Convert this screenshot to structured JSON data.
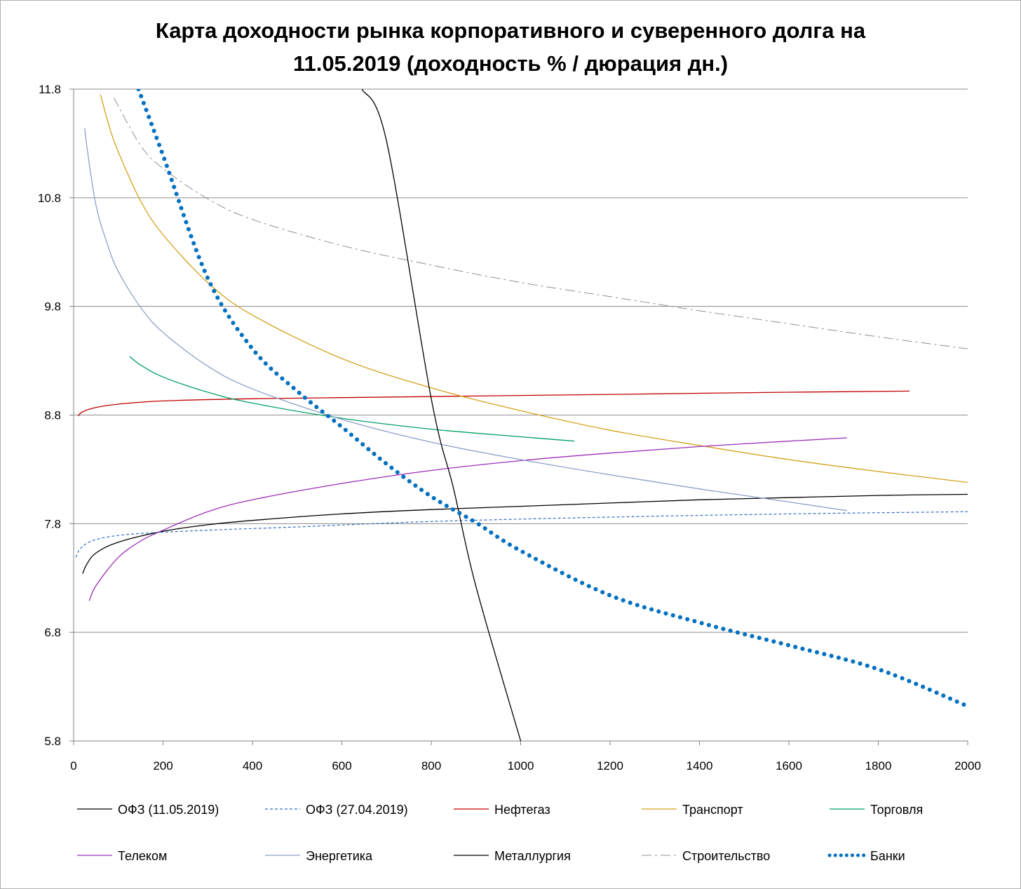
{
  "chart_data": {
    "type": "line",
    "title_line1": "Карта доходности рынка корпоративного и суверенного долга на",
    "title_line2": "11.05.2019 (доходность % / дюрация дн.)",
    "xlim": [
      0,
      2000
    ],
    "ylim": [
      5.8,
      11.8
    ],
    "x_ticks": [
      "0",
      "200",
      "400",
      "600",
      "800",
      "1000",
      "1200",
      "1400",
      "1600",
      "1800",
      "2000"
    ],
    "y_ticks": [
      "5.8",
      "6.8",
      "7.8",
      "8.8",
      "9.8",
      "10.8",
      "11.8"
    ],
    "grid": "horizontal",
    "legend_position": "bottom",
    "series": [
      {
        "name": "ОФЗ (11.05.2019)",
        "color": "#000000",
        "style": "solid",
        "x": [
          20,
          30,
          50,
          100,
          200,
          300,
          400,
          600,
          800,
          1000,
          1200,
          1400,
          1600,
          1800,
          2000
        ],
        "y": [
          7.34,
          7.43,
          7.53,
          7.63,
          7.73,
          7.79,
          7.83,
          7.89,
          7.93,
          7.96,
          7.99,
          8.02,
          8.04,
          8.06,
          8.07
        ]
      },
      {
        "name": "ОФЗ (27.04.2019)",
        "color": "#2e6ec2",
        "style": "dashed",
        "x": [
          5,
          10,
          20,
          40,
          80,
          150,
          300,
          500,
          800,
          1200,
          1600,
          2000
        ],
        "y": [
          7.49,
          7.54,
          7.59,
          7.64,
          7.68,
          7.71,
          7.74,
          7.77,
          7.82,
          7.86,
          7.89,
          7.91
        ]
      },
      {
        "name": "Нефтегаз",
        "color": "#c00000",
        "style": "solid",
        "x": [
          10,
          20,
          50,
          100,
          200,
          400,
          600,
          800,
          1000,
          1200,
          1400,
          1600,
          1870
        ],
        "y": [
          8.79,
          8.83,
          8.87,
          8.9,
          8.93,
          8.95,
          8.96,
          8.97,
          8.98,
          8.99,
          9.0,
          9.01,
          9.02
        ]
      },
      {
        "name": "Транспорт",
        "color": "#d4a017",
        "style": "solid",
        "x": [
          60,
          80,
          100,
          150,
          200,
          300,
          400,
          600,
          800,
          1000,
          1200,
          1400,
          1600,
          1800,
          2000
        ],
        "y": [
          11.75,
          11.45,
          11.22,
          10.77,
          10.46,
          10.02,
          9.72,
          9.32,
          9.05,
          8.84,
          8.66,
          8.52,
          8.39,
          8.28,
          8.18
        ]
      },
      {
        "name": "Торговля",
        "color": "#00a060",
        "style": "solid",
        "x": [
          125,
          150,
          200,
          300,
          400,
          600,
          800,
          1000,
          1120
        ],
        "y": [
          9.34,
          9.26,
          9.15,
          9.01,
          8.91,
          8.77,
          8.67,
          8.6,
          8.56
        ]
      },
      {
        "name": "Телеком",
        "color": "#9b30b8",
        "style": "solid",
        "x": [
          35,
          50,
          100,
          150,
          200,
          300,
          400,
          600,
          800,
          1000,
          1200,
          1400,
          1600,
          1730
        ],
        "y": [
          7.09,
          7.23,
          7.49,
          7.64,
          7.74,
          7.91,
          8.02,
          8.17,
          8.29,
          8.38,
          8.45,
          8.51,
          8.56,
          8.59
        ]
      },
      {
        "name": "Энергетика",
        "color": "#8ca0c8",
        "style": "solid",
        "x": [
          25,
          30,
          50,
          75,
          100,
          150,
          200,
          300,
          400,
          600,
          800,
          1000,
          1200,
          1400,
          1600,
          1730
        ],
        "y": [
          11.44,
          11.26,
          10.73,
          10.38,
          10.12,
          9.79,
          9.56,
          9.25,
          9.04,
          8.76,
          8.55,
          8.39,
          8.25,
          8.12,
          8.0,
          7.92
        ]
      },
      {
        "name": "Металлургия",
        "color": "#000000",
        "style": "solid",
        "x": [
          645,
          700,
          800,
          850,
          900,
          1000
        ],
        "y": [
          11.8,
          11.32,
          8.95,
          8.12,
          7.22,
          5.8
        ]
      },
      {
        "name": "Строительство",
        "color": "#909090",
        "style": "dashdot",
        "x": [
          90,
          150,
          200,
          300,
          400,
          600,
          800,
          1000,
          1200,
          1400,
          1600,
          1800,
          2000
        ],
        "y": [
          11.72,
          11.28,
          11.07,
          10.79,
          10.6,
          10.36,
          10.18,
          10.02,
          9.89,
          9.76,
          9.64,
          9.52,
          9.41
        ]
      },
      {
        "name": "Банки",
        "color": "#0070c0",
        "style": "dotted",
        "x": [
          145,
          200,
          300,
          400,
          500,
          600,
          700,
          800,
          900,
          1000,
          1200,
          1400,
          1600,
          1800,
          2000
        ],
        "y": [
          11.8,
          11.19,
          10.06,
          9.41,
          9.02,
          8.69,
          8.35,
          8.05,
          7.81,
          7.55,
          7.14,
          6.89,
          6.68,
          6.46,
          6.12
        ]
      }
    ]
  }
}
